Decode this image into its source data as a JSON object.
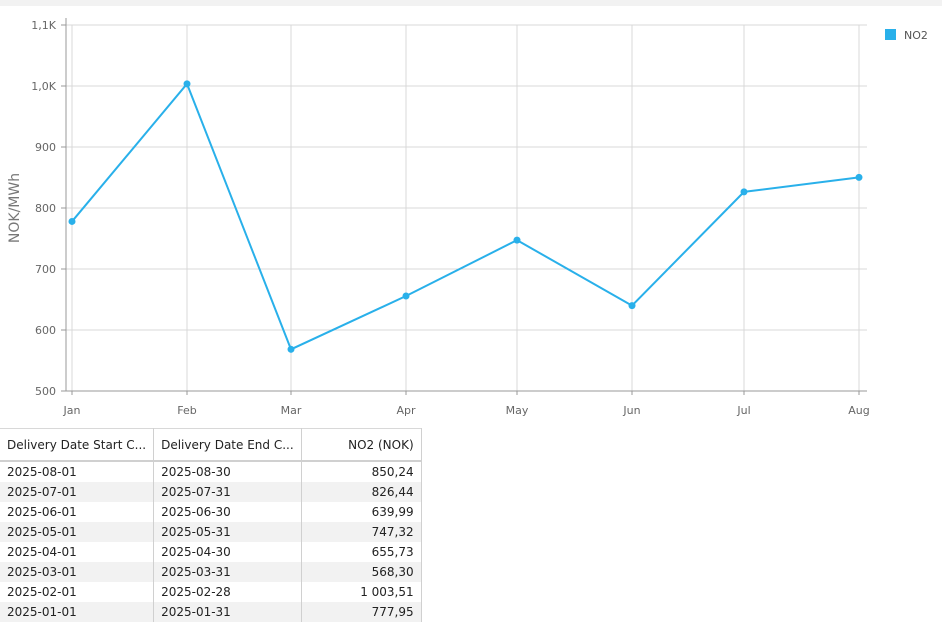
{
  "chart_data": {
    "type": "line",
    "categories": [
      "Jan",
      "Feb",
      "Mar",
      "Apr",
      "May",
      "Jun",
      "Jul",
      "Aug"
    ],
    "series": [
      {
        "name": "NO2",
        "values": [
          777.95,
          1003.51,
          568.3,
          655.73,
          747.32,
          639.99,
          826.44,
          850.24
        ]
      }
    ],
    "ylabel": "NOK/MWh",
    "ylim": [
      500,
      1100
    ],
    "yticks": [
      "500",
      "600",
      "700",
      "800",
      "900",
      "1,0K",
      "1,1K"
    ],
    "grid": true,
    "legend": "top-right",
    "color": "#29b0ea"
  },
  "table": {
    "headers": [
      "Delivery Date Start C...",
      "Delivery Date End C...",
      "NO2 (NOK)"
    ],
    "rows": [
      [
        "2025-08-01",
        "2025-08-30",
        "850,24"
      ],
      [
        "2025-07-01",
        "2025-07-31",
        "826,44"
      ],
      [
        "2025-06-01",
        "2025-06-30",
        "639,99"
      ],
      [
        "2025-05-01",
        "2025-05-31",
        "747,32"
      ],
      [
        "2025-04-01",
        "2025-04-30",
        "655,73"
      ],
      [
        "2025-03-01",
        "2025-03-31",
        "568,30"
      ],
      [
        "2025-02-01",
        "2025-02-28",
        "1 003,51"
      ],
      [
        "2025-01-01",
        "2025-01-31",
        "777,95"
      ]
    ]
  }
}
